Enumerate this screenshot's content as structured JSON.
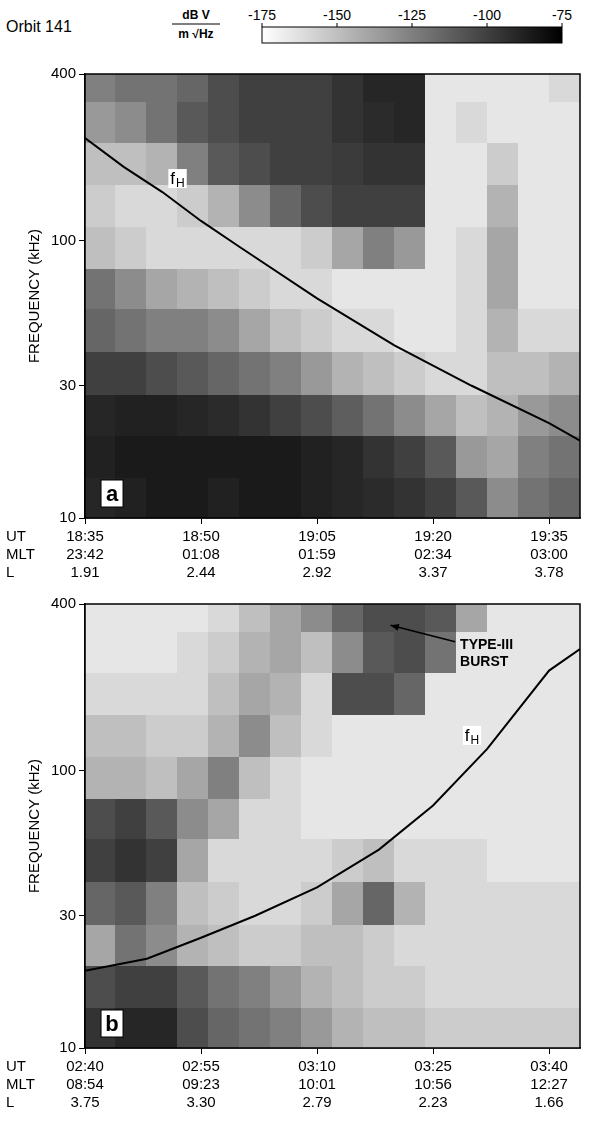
{
  "title": "Orbit 141",
  "colorbar": {
    "label": [
      "dB V",
      "m √Hz"
    ],
    "range": [
      -175,
      -75
    ],
    "ticks": [
      -175,
      -150,
      -125,
      -100,
      -75
    ],
    "colors": [
      "#ffffff",
      "#000000"
    ]
  },
  "chart_data": [
    {
      "type": "heatmap",
      "panel_label": "a",
      "y_label": "FREQUENCY (kHz)",
      "log": "y",
      "grid": false,
      "xlim": [
        0,
        64
      ],
      "xticks": [
        {
          "value": 0,
          "label": [
            "18:35",
            "23:42",
            "1.91"
          ]
        },
        {
          "value": 15,
          "label": [
            "18:50",
            "01:08",
            "2.44"
          ]
        },
        {
          "value": 30,
          "label": [
            "19:05",
            "01:59",
            "2.92"
          ]
        },
        {
          "value": 45,
          "label": [
            "19:20",
            "02:34",
            "3.37"
          ]
        },
        {
          "value": 60,
          "label": [
            "19:35",
            "03:00",
            "3.78"
          ]
        }
      ],
      "x_row_labels": [
        "UT",
        "MLT",
        "L"
      ],
      "ylim": [
        10,
        400
      ],
      "yticks": [
        10,
        30,
        100,
        400
      ],
      "heatmap": {
        "x_edges": [
          0,
          4,
          8,
          12,
          16,
          20,
          24,
          28,
          32,
          36,
          40,
          44,
          48,
          52,
          56,
          60,
          64
        ],
        "y_edges": [
          10,
          14,
          20,
          28,
          40,
          57,
          80,
          113,
          160,
          226,
          320,
          400
        ],
        "values": [
          [
            -90,
            -88,
            -85,
            -85,
            -88,
            -85,
            -85,
            -88,
            -90,
            -92,
            -95,
            -100,
            -110,
            -130,
            -120,
            -115
          ],
          [
            -88,
            -85,
            -85,
            -85,
            -85,
            -85,
            -85,
            -88,
            -90,
            -95,
            -100,
            -110,
            -135,
            -140,
            -125,
            -120
          ],
          [
            -90,
            -88,
            -88,
            -90,
            -92,
            -95,
            -100,
            -105,
            -112,
            -120,
            -130,
            -140,
            -150,
            -145,
            -135,
            -130
          ],
          [
            -100,
            -100,
            -105,
            -110,
            -115,
            -120,
            -125,
            -135,
            -145,
            -150,
            -155,
            -160,
            -160,
            -150,
            -150,
            -145
          ],
          [
            -115,
            -120,
            -125,
            -125,
            -130,
            -140,
            -150,
            -155,
            -160,
            -160,
            -165,
            -165,
            -160,
            -145,
            -160,
            -160
          ],
          [
            -120,
            -130,
            -140,
            -145,
            -150,
            -155,
            -160,
            -160,
            -165,
            -165,
            -165,
            -165,
            -160,
            -140,
            -165,
            -165
          ],
          [
            -150,
            -155,
            -160,
            -160,
            -160,
            -160,
            -160,
            -155,
            -140,
            -125,
            -135,
            -165,
            -160,
            -140,
            -165,
            -165
          ],
          [
            -155,
            -160,
            -160,
            -155,
            -145,
            -130,
            -115,
            -105,
            -100,
            -100,
            -100,
            -165,
            -165,
            -145,
            -165,
            -165
          ],
          [
            -150,
            -150,
            -145,
            -125,
            -110,
            -105,
            -100,
            -100,
            -98,
            -95,
            -95,
            -165,
            -165,
            -155,
            -165,
            -165
          ],
          [
            -135,
            -130,
            -120,
            -110,
            -105,
            -100,
            -100,
            -100,
            -95,
            -92,
            -90,
            -165,
            -160,
            -165,
            -165,
            -165
          ],
          [
            -125,
            -120,
            -120,
            -115,
            -105,
            -100,
            -100,
            -100,
            -95,
            -90,
            -90,
            -165,
            -165,
            -165,
            -165,
            -160
          ]
        ]
      },
      "series": [
        {
          "name": "fH",
          "type": "line",
          "color": "#000000",
          "x": [
            0,
            5,
            10,
            15,
            20,
            30,
            40,
            50,
            60,
            64
          ],
          "values": [
            235,
            185,
            150,
            118,
            95,
            62,
            42,
            30,
            22,
            19
          ]
        }
      ],
      "annotations": []
    },
    {
      "type": "heatmap",
      "panel_label": "b",
      "y_label": "FREQUENCY (kHz)",
      "log": "y",
      "grid": false,
      "xlim": [
        0,
        64
      ],
      "xticks": [
        {
          "value": 0,
          "label": [
            "02:40",
            "08:54",
            "3.75"
          ]
        },
        {
          "value": 15,
          "label": [
            "02:55",
            "09:23",
            "3.30"
          ]
        },
        {
          "value": 30,
          "label": [
            "03:10",
            "10:01",
            "2.79"
          ]
        },
        {
          "value": 45,
          "label": [
            "03:25",
            "10:56",
            "2.23"
          ]
        },
        {
          "value": 60,
          "label": [
            "03:40",
            "12:27",
            "1.66"
          ]
        }
      ],
      "x_row_labels": [
        "UT",
        "MLT",
        "L"
      ],
      "ylim": [
        10,
        400
      ],
      "yticks": [
        10,
        30,
        100,
        400
      ],
      "heatmap": {
        "x_edges": [
          0,
          4,
          8,
          12,
          16,
          20,
          24,
          28,
          32,
          36,
          40,
          44,
          48,
          52,
          56,
          60,
          64
        ],
        "y_edges": [
          10,
          14,
          20,
          28,
          40,
          57,
          80,
          113,
          160,
          226,
          320,
          400
        ],
        "values": [
          [
            -95,
            -90,
            -90,
            -105,
            -115,
            -120,
            -125,
            -135,
            -145,
            -150,
            -150,
            -155,
            -155,
            -155,
            -155,
            -155
          ],
          [
            -105,
            -100,
            -100,
            -110,
            -120,
            -125,
            -135,
            -145,
            -150,
            -155,
            -155,
            -160,
            -160,
            -160,
            -160,
            -160
          ],
          [
            -140,
            -120,
            -130,
            -145,
            -150,
            -155,
            -155,
            -150,
            -150,
            -155,
            -160,
            -160,
            -160,
            -160,
            -160,
            -160
          ],
          [
            -115,
            -110,
            -125,
            -150,
            -155,
            -160,
            -160,
            -155,
            -140,
            -115,
            -145,
            -160,
            -160,
            -160,
            -160,
            -160
          ],
          [
            -100,
            -95,
            -100,
            -140,
            -160,
            -160,
            -160,
            -160,
            -155,
            -150,
            -160,
            -160,
            -160,
            -165,
            -165,
            -165
          ],
          [
            -105,
            -100,
            -110,
            -130,
            -140,
            -160,
            -160,
            -165,
            -165,
            -165,
            -165,
            -165,
            -165,
            -165,
            -165,
            -165
          ],
          [
            -145,
            -145,
            -150,
            -140,
            -125,
            -150,
            -160,
            -165,
            -165,
            -165,
            -165,
            -165,
            -165,
            -165,
            -165,
            -165
          ],
          [
            -150,
            -150,
            -155,
            -155,
            -145,
            -130,
            -150,
            -160,
            -165,
            -165,
            -165,
            -165,
            -165,
            -165,
            -165,
            -165
          ],
          [
            -160,
            -160,
            -160,
            -160,
            -150,
            -140,
            -145,
            -160,
            -105,
            -105,
            -115,
            -165,
            -165,
            -165,
            -165,
            -165
          ],
          [
            -165,
            -165,
            -165,
            -160,
            -155,
            -145,
            -140,
            -150,
            -130,
            -110,
            -105,
            -120,
            -165,
            -165,
            -165,
            -165
          ],
          [
            -165,
            -165,
            -165,
            -165,
            -160,
            -150,
            -140,
            -130,
            -115,
            -105,
            -105,
            -110,
            -140,
            -165,
            -165,
            -165
          ]
        ]
      },
      "series": [
        {
          "name": "fH",
          "type": "line",
          "color": "#000000",
          "x": [
            0,
            8,
            15,
            22,
            30,
            38,
            45,
            52,
            60,
            64
          ],
          "values": [
            19,
            21,
            25,
            30,
            38,
            52,
            75,
            120,
            230,
            275
          ]
        }
      ],
      "annotations": [
        {
          "text": "TYPE-III BURST"
        }
      ]
    }
  ]
}
